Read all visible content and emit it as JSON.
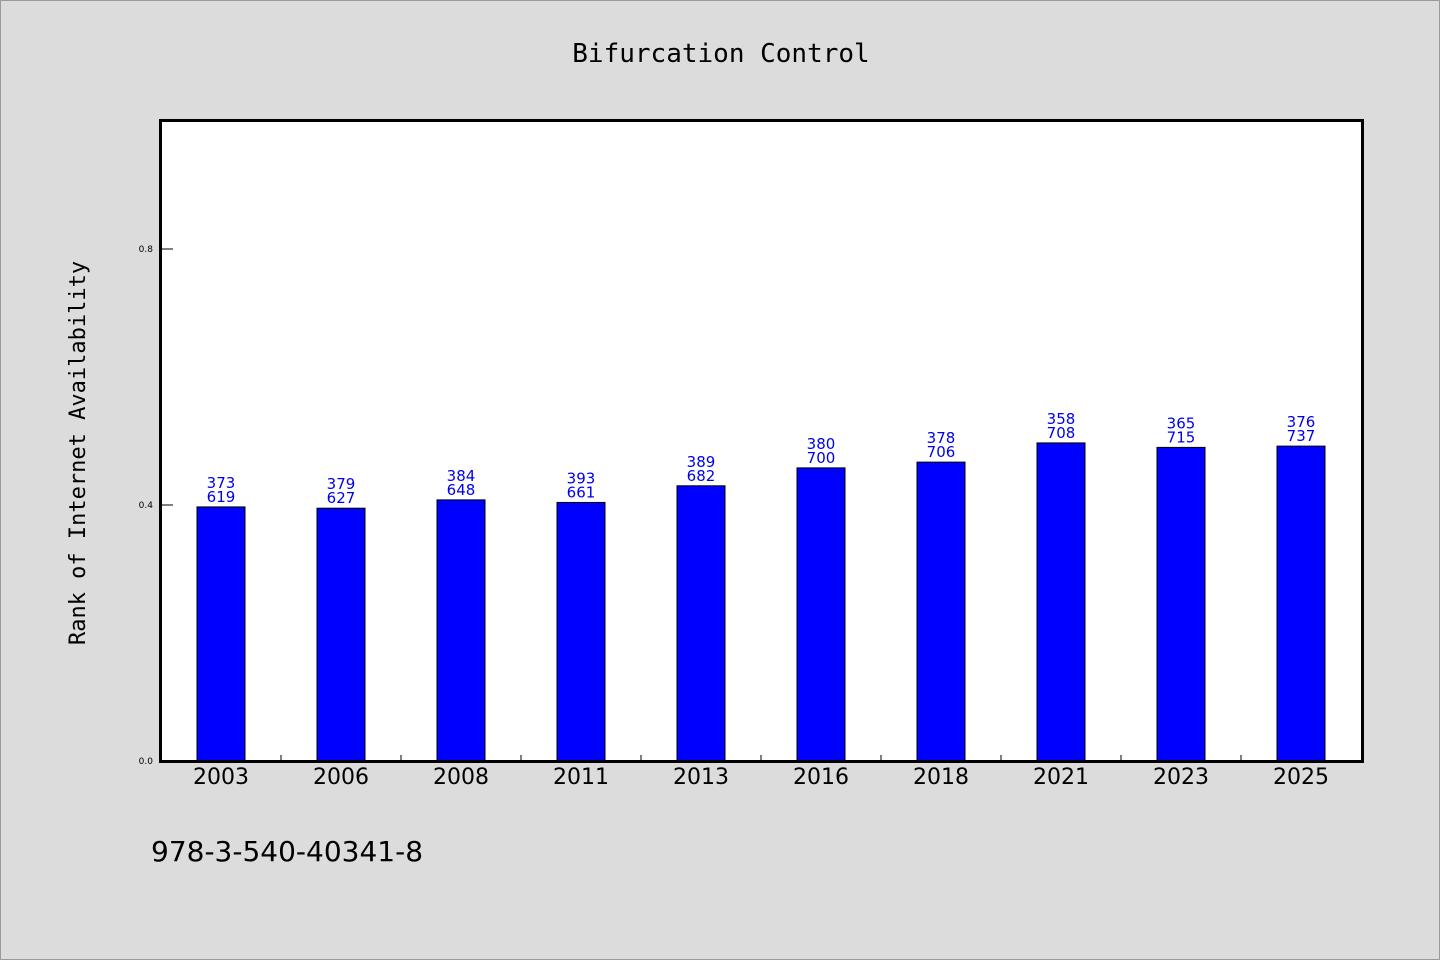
{
  "chart_data": {
    "type": "bar",
    "title": "Bifurcation Control",
    "xlabel": "",
    "ylabel": "Rank of Internet Availability",
    "categories": [
      "2003",
      "2006",
      "2008",
      "2011",
      "2013",
      "2016",
      "2018",
      "2021",
      "2023",
      "2025"
    ],
    "values": [
      0.397,
      0.395,
      0.408,
      0.404,
      0.43,
      0.458,
      0.467,
      0.497,
      0.49,
      0.492
    ],
    "bar_labels_top": [
      "373",
      "379",
      "384",
      "393",
      "389",
      "380",
      "378",
      "358",
      "365",
      "376"
    ],
    "bar_labels_bottom": [
      "619",
      "627",
      "648",
      "661",
      "682",
      "700",
      "706",
      "708",
      "715",
      "737"
    ],
    "ylim": [
      0.0,
      1.0
    ],
    "yticks": [
      0.0,
      0.4,
      0.8
    ],
    "ytick_labels": [
      "0.0",
      "0.4",
      "0.8"
    ],
    "grid": false,
    "legend": "none",
    "colors": {
      "bar_fill": "#0000ff",
      "bar_edge": "#000000",
      "bar_label": "#0000ee",
      "plot_background": "#ffffff",
      "figure_background": "#dcdcdc"
    }
  },
  "footnote": "978-3-540-40341-8"
}
